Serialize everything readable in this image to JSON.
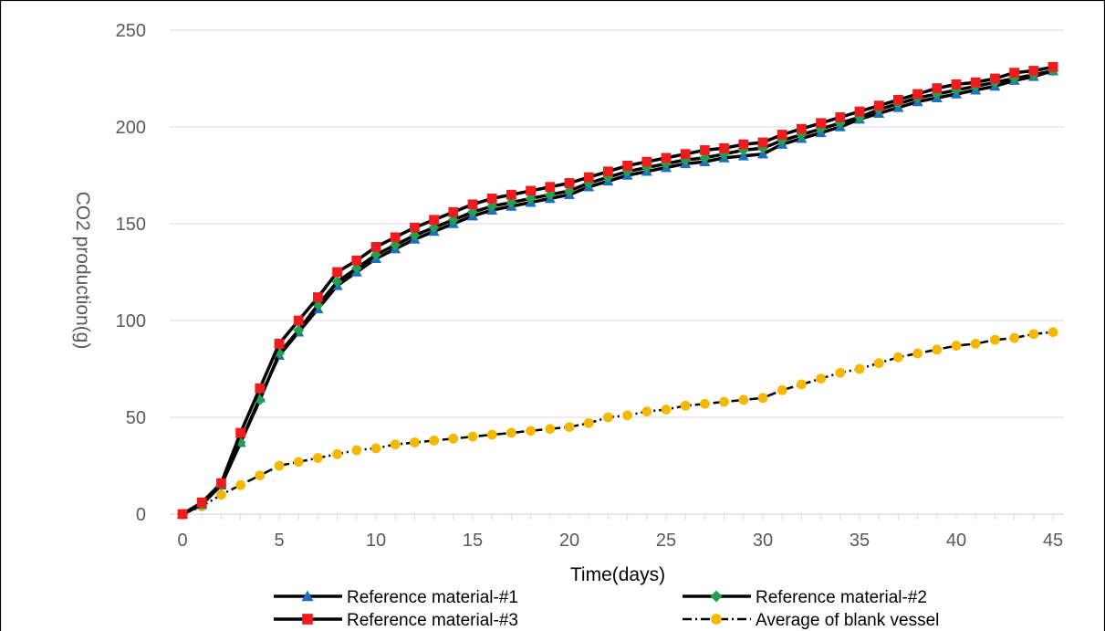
{
  "chart_data": {
    "type": "line",
    "title": "",
    "xlabel": "Time(days)",
    "ylabel": "CO2 production(g)",
    "xlim": [
      0,
      45
    ],
    "ylim": [
      0,
      250
    ],
    "x_ticks": [
      0,
      5,
      10,
      15,
      20,
      25,
      30,
      35,
      40,
      45
    ],
    "y_ticks": [
      0,
      50,
      100,
      150,
      200,
      250
    ],
    "grid": "horizontal",
    "legend_position": "bottom",
    "x": [
      0,
      1,
      2,
      3,
      4,
      5,
      6,
      7,
      8,
      9,
      10,
      11,
      12,
      13,
      14,
      15,
      16,
      17,
      18,
      19,
      20,
      21,
      22,
      23,
      24,
      25,
      26,
      27,
      28,
      29,
      30,
      31,
      32,
      33,
      34,
      35,
      36,
      37,
      38,
      39,
      40,
      41,
      42,
      43,
      44,
      45
    ],
    "series": [
      {
        "name": "Reference material-#1",
        "line_color": "#000000",
        "marker": "triangle",
        "marker_color": "#1f6fc0",
        "dash": "solid",
        "values": [
          0,
          5,
          15,
          37,
          60,
          82,
          94,
          106,
          118,
          125,
          132,
          137,
          142,
          146,
          150,
          154,
          157,
          159,
          161,
          163,
          165,
          169,
          172,
          175,
          177,
          179,
          181,
          182,
          184,
          185,
          186,
          191,
          194,
          197,
          200,
          204,
          207,
          210,
          213,
          215,
          217,
          219,
          221,
          224,
          226,
          229
        ]
      },
      {
        "name": "Reference material-#2",
        "line_color": "#000000",
        "marker": "diamond",
        "marker_color": "#22a050",
        "dash": "solid",
        "values": [
          0,
          5,
          15,
          37,
          59,
          83,
          95,
          108,
          120,
          127,
          134,
          139,
          144,
          148,
          152,
          156,
          159,
          161,
          163,
          165,
          167,
          171,
          174,
          177,
          179,
          181,
          183,
          184,
          186,
          188,
          189,
          193,
          196,
          199,
          202,
          205,
          209,
          212,
          215,
          217,
          219,
          221,
          223,
          225,
          227,
          229
        ]
      },
      {
        "name": "Reference material-#3",
        "line_color": "#000000",
        "marker": "square",
        "marker_color": "#ee1c1c",
        "dash": "solid",
        "values": [
          0,
          6,
          16,
          42,
          65,
          88,
          100,
          112,
          125,
          131,
          138,
          143,
          148,
          152,
          156,
          160,
          163,
          165,
          167,
          169,
          171,
          174,
          177,
          180,
          182,
          184,
          186,
          188,
          189,
          191,
          192,
          196,
          199,
          202,
          205,
          208,
          211,
          214,
          217,
          220,
          222,
          223,
          225,
          228,
          229,
          231
        ]
      },
      {
        "name": "Average of blank vessel",
        "line_color": "#000000",
        "marker": "circle",
        "marker_color": "#f5b800",
        "dash": "dash-dot",
        "values": [
          0,
          4,
          10,
          15,
          20,
          25,
          27,
          29,
          31,
          33,
          34,
          36,
          37,
          38,
          39,
          40,
          41,
          42,
          43,
          44,
          45,
          47,
          50,
          51,
          53,
          54,
          56,
          57,
          58,
          59,
          60,
          64,
          67,
          70,
          73,
          75,
          78,
          81,
          83,
          85,
          87,
          88,
          90,
          91,
          93,
          94
        ]
      }
    ]
  }
}
